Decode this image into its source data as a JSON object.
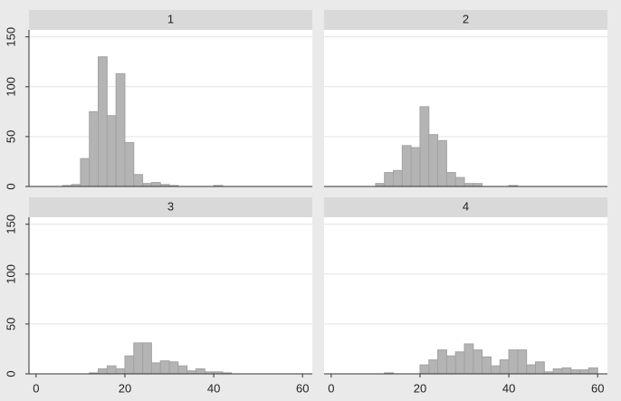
{
  "chart_data": [
    {
      "type": "histogram",
      "title": "1",
      "color": "#b4b4b4",
      "bins": [
        6,
        8,
        10,
        12,
        14,
        16,
        18,
        20,
        22,
        24,
        26,
        28,
        30,
        32,
        34,
        36,
        38,
        40,
        42
      ],
      "values": [
        1,
        2,
        28,
        75,
        130,
        71,
        113,
        44,
        12,
        3,
        4,
        2,
        1,
        0,
        0,
        0,
        0,
        1
      ],
      "xlim": [
        -1.6,
        62.2
      ],
      "ylim": [
        0,
        157
      ],
      "yticks": [
        0,
        50,
        100,
        150
      ],
      "grid": true
    },
    {
      "type": "histogram",
      "title": "2",
      "color": "#b4b4b4",
      "bins": [
        10,
        12,
        14,
        16,
        18,
        20,
        22,
        24,
        26,
        28,
        30,
        32,
        34,
        36,
        38,
        40,
        42
      ],
      "values": [
        3,
        14,
        16,
        41,
        39,
        80,
        52,
        46,
        14,
        9,
        3,
        3,
        0,
        0,
        0,
        1
      ],
      "xlim": [
        -1.6,
        62.2
      ],
      "ylim": [
        0,
        157
      ],
      "yticks": [
        0,
        50,
        100,
        150
      ],
      "grid": true
    },
    {
      "type": "histogram",
      "title": "3",
      "color": "#b4b4b4",
      "bins": [
        12,
        14,
        16,
        18,
        20,
        22,
        24,
        26,
        28,
        30,
        32,
        34,
        36,
        38,
        40,
        42,
        44
      ],
      "values": [
        1,
        5,
        8,
        5,
        18,
        31,
        31,
        11,
        13,
        12,
        8,
        3,
        5,
        2,
        2,
        1
      ],
      "xlim": [
        -1.6,
        62.2
      ],
      "ylim": [
        0,
        157
      ],
      "yticks": [
        0,
        50,
        100,
        150
      ],
      "xticks": [
        0,
        20,
        40,
        60
      ],
      "grid": true
    },
    {
      "type": "histogram",
      "title": "4",
      "color": "#b4b4b4",
      "bins": [
        12,
        14,
        16,
        18,
        20,
        22,
        24,
        26,
        28,
        30,
        32,
        34,
        36,
        38,
        40,
        42,
        44,
        46,
        48,
        50,
        52,
        54,
        56,
        58,
        60
      ],
      "values": [
        1,
        0,
        0,
        0,
        9,
        14,
        24,
        18,
        22,
        30,
        24,
        17,
        8,
        14,
        24,
        24,
        9,
        12,
        2,
        5,
        6,
        4,
        4,
        6
      ],
      "xlim": [
        -1.6,
        62.2
      ],
      "ylim": [
        0,
        157
      ],
      "yticks": [
        0,
        50,
        100,
        150
      ],
      "xticks": [
        0,
        20,
        40,
        60
      ],
      "grid": true
    }
  ]
}
